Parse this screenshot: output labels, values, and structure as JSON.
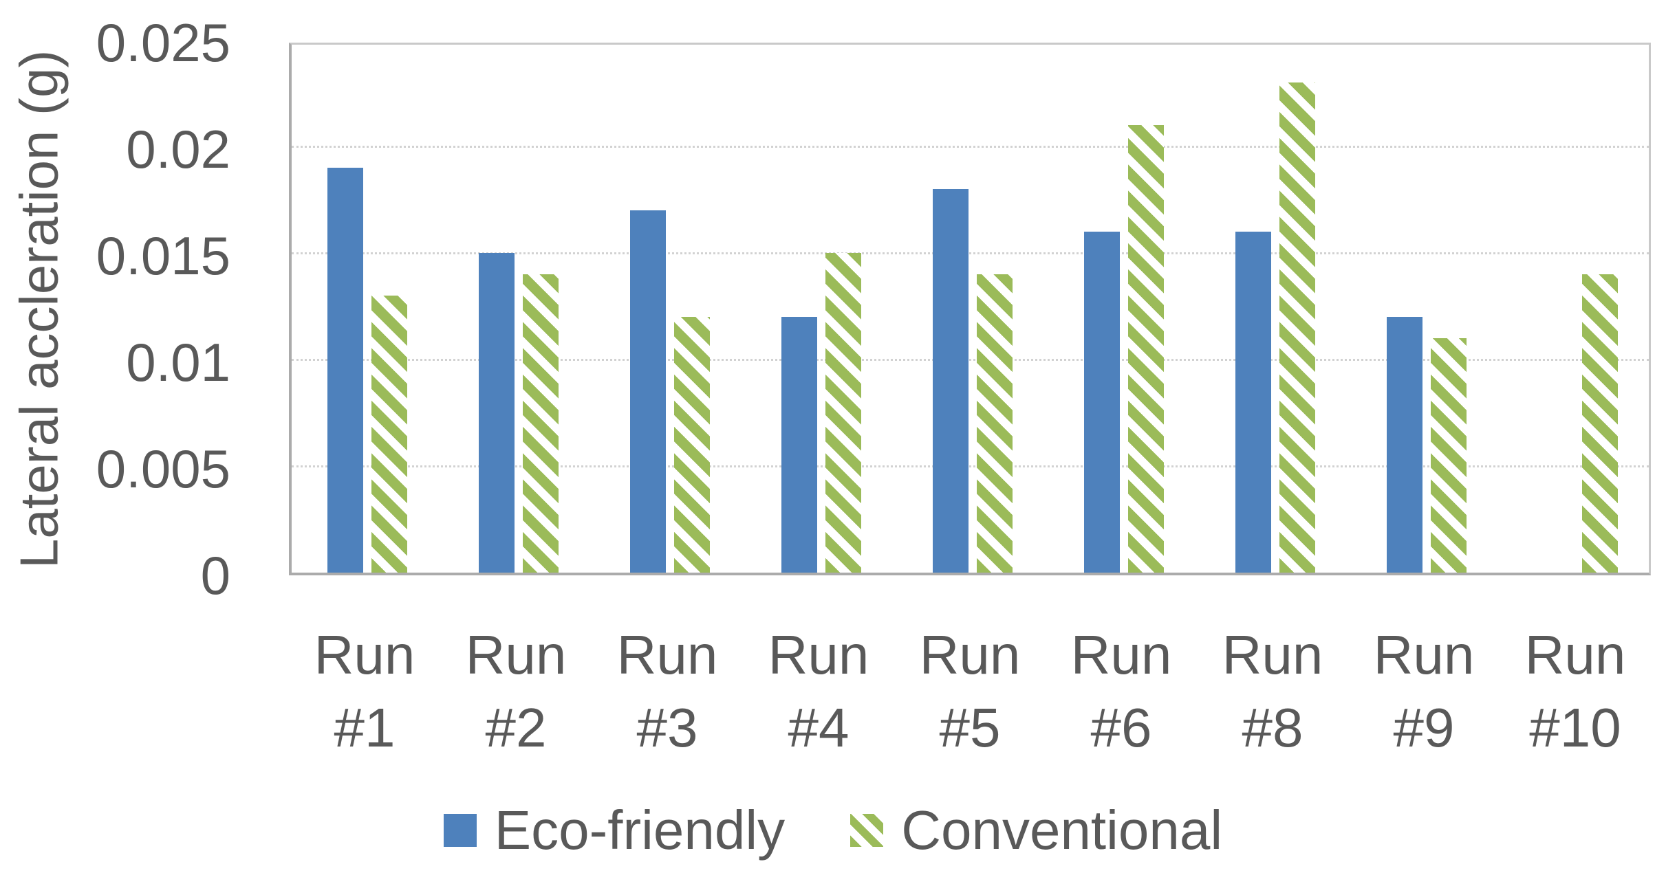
{
  "chart_data": {
    "type": "bar",
    "title": "",
    "ylabel": "Lateral accleration (g)",
    "xlabel": "",
    "ylim": [
      0,
      0.025
    ],
    "yticks": [
      0,
      0.005,
      0.01,
      0.015,
      0.02,
      0.025
    ],
    "ytick_labels": [
      "0",
      "0.005",
      "0.01",
      "0.015",
      "0.02",
      "0.025"
    ],
    "categories": [
      "Run #1",
      "Run #2",
      "Run #3",
      "Run #4",
      "Run #5",
      "Run #6",
      "Run #8",
      "Run #9",
      "Run #10"
    ],
    "category_lines": [
      [
        "Run",
        "#1"
      ],
      [
        "Run",
        "#2"
      ],
      [
        "Run",
        "#3"
      ],
      [
        "Run",
        "#4"
      ],
      [
        "Run",
        "#5"
      ],
      [
        "Run",
        "#6"
      ],
      [
        "Run",
        "#8"
      ],
      [
        "Run",
        "#9"
      ],
      [
        "Run",
        "#10"
      ]
    ],
    "series": [
      {
        "name": "Eco-friendly",
        "pattern": "solid",
        "color": "#4E81BC",
        "values": [
          0.019,
          0.015,
          0.017,
          0.012,
          0.018,
          0.016,
          0.016,
          0.012,
          null
        ]
      },
      {
        "name": "Conventional",
        "pattern": "diagonal-hatch",
        "color": "#9BBB59",
        "values": [
          0.013,
          0.014,
          0.012,
          0.015,
          0.014,
          0.021,
          0.023,
          0.011,
          0.014
        ]
      }
    ],
    "grid": true,
    "legend_position": "bottom",
    "colors": {
      "axis_text": "#595959",
      "gridline": "#d2d2d2",
      "axis_line": "#ababab",
      "plot_border": "#c9c9c9",
      "background": "#ffffff"
    }
  }
}
